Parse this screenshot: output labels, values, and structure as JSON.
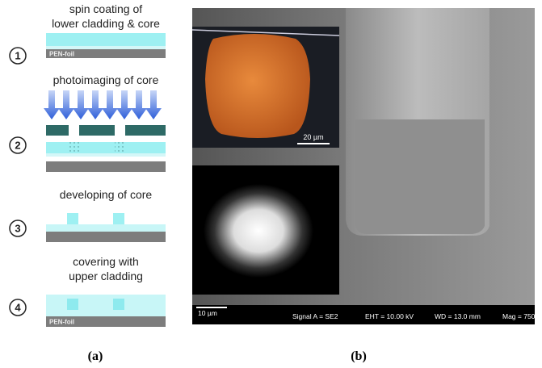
{
  "panel_a": {
    "steps": [
      {
        "number": "1",
        "lines": [
          "spin coating of",
          "lower cladding & core"
        ],
        "substrate_label": "PEN-foil"
      },
      {
        "number": "2",
        "lines": [
          "photoimaging of core"
        ]
      },
      {
        "number": "3",
        "lines": [
          "developing of core"
        ]
      },
      {
        "number": "4",
        "lines": [
          "covering with",
          "upper cladding"
        ],
        "substrate_label": "PEN-foil"
      }
    ],
    "caption": "(a)"
  },
  "panel_b": {
    "inset_scale_bar": "20 µm",
    "scale_bar": "10 µm",
    "info_bar": [
      "Signal A = SE2",
      "EHT = 10.00 kV",
      "WD = 13.0 mm",
      "Mag = 750"
    ],
    "caption": "(b)"
  }
}
